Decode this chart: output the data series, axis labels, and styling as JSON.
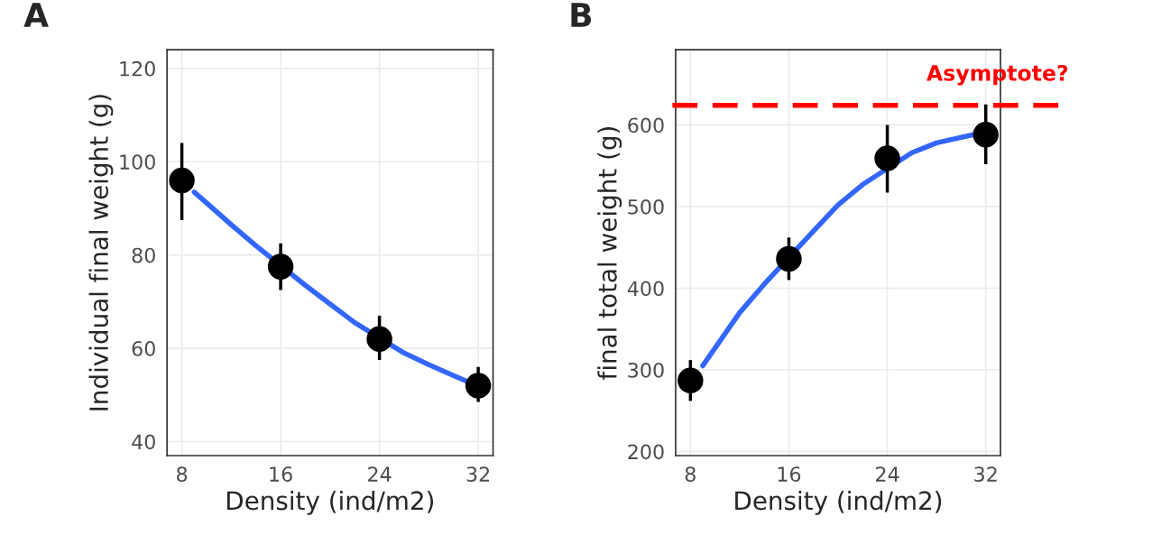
{
  "chart_data": [
    {
      "type": "scatter",
      "title": "A",
      "xlabel": "Density (ind/m2)",
      "ylabel": "Individual final weight (g)",
      "xlim": [
        6.8,
        33.2
      ],
      "xticks": [
        8,
        16,
        24,
        32
      ],
      "ylim": [
        37,
        124
      ],
      "yticks": [
        40,
        60,
        80,
        100,
        120
      ],
      "grid": true,
      "series": [
        {
          "type": "line",
          "marker": "none",
          "color": "#3366ff",
          "x": [
            9,
            12,
            14,
            18,
            20,
            22,
            26,
            28,
            31
          ],
          "values": [
            93.5,
            86.5,
            82,
            73.5,
            69.5,
            65.5,
            59,
            56.5,
            53
          ]
        },
        {
          "marker": "circle",
          "color": "#000000",
          "x": [
            8,
            16,
            24,
            32
          ],
          "values": [
            96,
            77.5,
            62,
            52
          ],
          "errors": [
            [
              87.5,
              104
            ],
            [
              72.5,
              82.5
            ],
            [
              57.5,
              67
            ],
            [
              48.5,
              56
            ]
          ]
        }
      ]
    },
    {
      "type": "scatter",
      "title": "B",
      "xlabel": "Density (ind/m2)",
      "ylabel": "final total weight (g)",
      "xlim": [
        6.8,
        33.2
      ],
      "xticks": [
        8,
        16,
        24,
        32
      ],
      "ylim": [
        195,
        692
      ],
      "yticks": [
        200,
        300,
        400,
        500,
        600
      ],
      "grid": true,
      "series": [
        {
          "type": "line",
          "marker": "none",
          "color": "#3366ff",
          "x": [
            9,
            12,
            14,
            18,
            20,
            22,
            26,
            28,
            31
          ],
          "values": [
            305,
            370,
            405,
            470,
            502,
            527,
            566,
            578,
            588
          ]
        },
        {
          "marker": "circle",
          "color": "#000000",
          "x": [
            8,
            16,
            24,
            32
          ],
          "values": [
            287,
            436,
            559,
            588
          ],
          "errors": [
            [
              262,
              312
            ],
            [
              410,
              462
            ],
            [
              517,
              600
            ],
            [
              552,
              625
            ]
          ]
        }
      ],
      "ref_lines": [
        {
          "axis": "y",
          "value": 624,
          "label": "Asymptote?",
          "color": "#ff0000",
          "line_style": "dashed"
        }
      ]
    }
  ]
}
